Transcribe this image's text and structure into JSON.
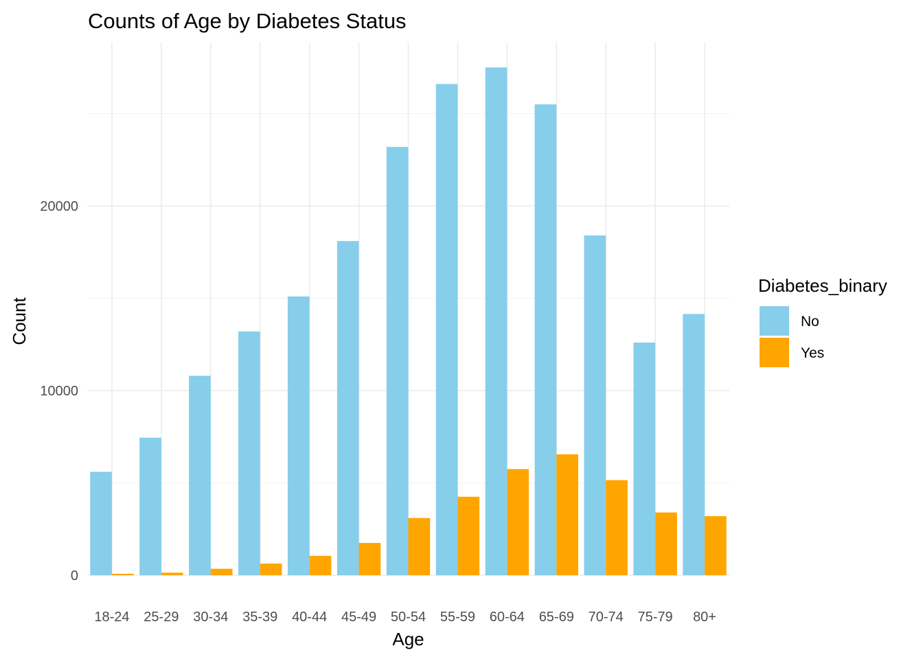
{
  "chart_data": {
    "type": "bar",
    "title": "Counts of Age by Diabetes Status",
    "xlabel": "Age",
    "ylabel": "Count",
    "ylim": [
      0,
      28000
    ],
    "yticks": [
      0,
      10000,
      20000
    ],
    "yticks_minor": [
      5000,
      15000,
      25000
    ],
    "grid": true,
    "categories": [
      "18-24",
      "25-29",
      "30-34",
      "35-39",
      "40-44",
      "45-49",
      "50-54",
      "55-59",
      "60-64",
      "65-69",
      "70-74",
      "75-79",
      "80+"
    ],
    "series": [
      {
        "name": "No",
        "color": "#87CEEB",
        "values": [
          5600,
          7450,
          10800,
          13200,
          15100,
          18100,
          23200,
          26600,
          27500,
          25500,
          18400,
          12600,
          14150
        ]
      },
      {
        "name": "Yes",
        "color": "#FFA500",
        "values": [
          80,
          140,
          350,
          630,
          1050,
          1750,
          3100,
          4250,
          5750,
          6550,
          5150,
          3400,
          3200
        ]
      }
    ],
    "legend": {
      "title": "Diabetes_binary",
      "position": "right"
    }
  }
}
